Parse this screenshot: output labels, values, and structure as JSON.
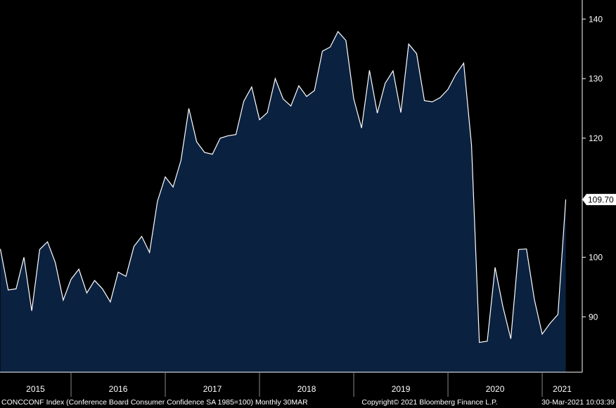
{
  "chart_data": {
    "type": "area",
    "series": [
      {
        "name": "CONCCONF Index",
        "color": "#ffffff",
        "fill": "#0b2140",
        "x": [
          2015.25,
          2015.333,
          2015.417,
          2015.5,
          2015.583,
          2015.667,
          2015.75,
          2015.833,
          2015.917,
          2016.0,
          2016.083,
          2016.167,
          2016.25,
          2016.333,
          2016.417,
          2016.5,
          2016.583,
          2016.667,
          2016.75,
          2016.833,
          2016.917,
          2017.0,
          2017.083,
          2017.167,
          2017.25,
          2017.333,
          2017.417,
          2017.5,
          2017.583,
          2017.667,
          2017.75,
          2017.833,
          2017.917,
          2018.0,
          2018.083,
          2018.167,
          2018.25,
          2018.333,
          2018.417,
          2018.5,
          2018.583,
          2018.667,
          2018.75,
          2018.833,
          2018.917,
          2019.0,
          2019.083,
          2019.167,
          2019.25,
          2019.333,
          2019.417,
          2019.5,
          2019.583,
          2019.667,
          2019.75,
          2019.833,
          2019.917,
          2020.0,
          2020.083,
          2020.167,
          2020.25,
          2020.333,
          2020.417,
          2020.5,
          2020.583,
          2020.667,
          2020.75,
          2020.833,
          2020.917,
          2021.0,
          2021.083,
          2021.167,
          2021.25
        ],
        "values": [
          101.4,
          94.5,
          94.7,
          100.0,
          91.0,
          101.3,
          102.6,
          99.1,
          92.8,
          96.3,
          98.0,
          94.0,
          96.1,
          94.7,
          92.5,
          97.5,
          96.8,
          101.8,
          103.5,
          100.8,
          109.4,
          113.5,
          111.8,
          116.3,
          125.0,
          119.4,
          117.6,
          117.3,
          120.0,
          120.4,
          120.6,
          126.2,
          128.6,
          123.1,
          124.3,
          130.0,
          126.6,
          125.4,
          128.8,
          127.0,
          128.0,
          134.6,
          135.3,
          137.9,
          136.4,
          126.6,
          121.7,
          131.4,
          124.2,
          129.2,
          131.3,
          124.3,
          135.8,
          134.2,
          126.3,
          126.1,
          126.8,
          128.2,
          130.7,
          132.6,
          118.8,
          85.7,
          85.9,
          98.3,
          91.7,
          86.3,
          101.3,
          101.4,
          92.9,
          87.1,
          88.9,
          90.4,
          109.7
        ],
        "value_labels": [
          null,
          null,
          null,
          null,
          null,
          null,
          null,
          null,
          null,
          null,
          null,
          null,
          null,
          null,
          null,
          null,
          null,
          null,
          null,
          null,
          null,
          null,
          null,
          null,
          null,
          null,
          null,
          null,
          null,
          null,
          null,
          null,
          null,
          null,
          null,
          null,
          null,
          null,
          null,
          null,
          null,
          null,
          null,
          null,
          null,
          null,
          null,
          null,
          null,
          null,
          null,
          null,
          null,
          null,
          null,
          null,
          null,
          null,
          null,
          null,
          null,
          null,
          null,
          null,
          null,
          null,
          null,
          null,
          null,
          null,
          null,
          null,
          "109.70"
        ]
      }
    ],
    "xlim": [
      2015.246,
      2021.425
    ],
    "xticks": [
      2015,
      2016,
      2017,
      2018,
      2019,
      2020,
      2021
    ],
    "ylim": [
      80.7,
      143.2
    ],
    "yticks": [
      90,
      100,
      120,
      130,
      140
    ],
    "y_axis_side": "right",
    "footer_left": "CONCCONF Index (Conference Board Consumer Confidence SA 1985=100)  Monthly 30MAR",
    "footer_center": "Copyright© 2021 Bloomberg Finance L.P.",
    "footer_right": "30-Mar-2021 10:03:39"
  }
}
